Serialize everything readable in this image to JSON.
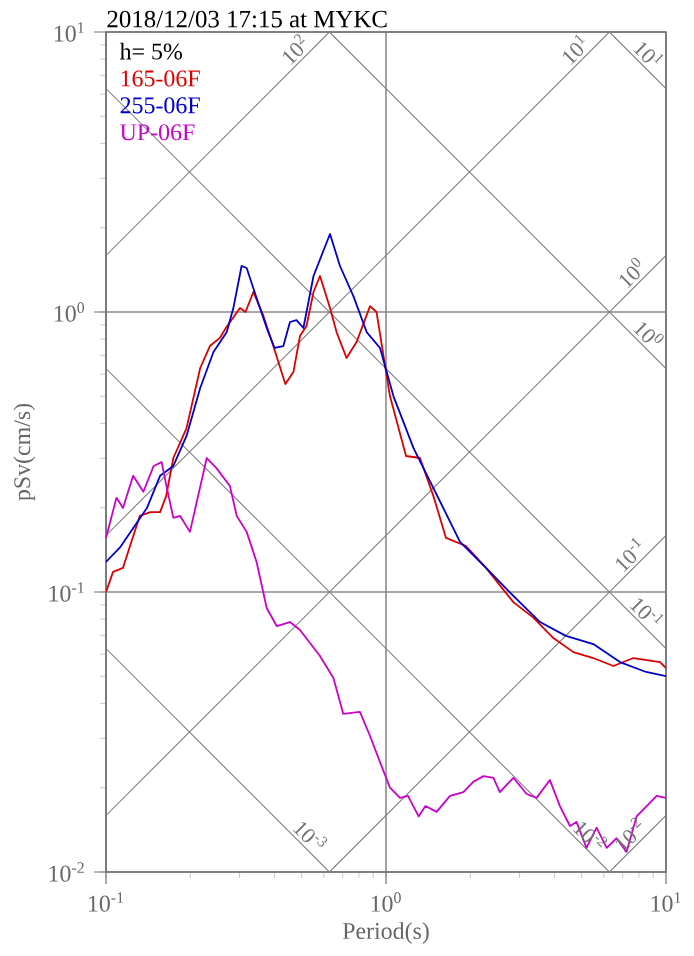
{
  "chart_data": {
    "type": "line",
    "title": "2018/12/03 17:15 at MYKC",
    "xlabel": "Period(s)",
    "ylabel": "pSv(cm/s)",
    "log": "xy",
    "grid": true,
    "legend": "top left",
    "xlim": [
      0.1,
      10
    ],
    "ylim": [
      0.01,
      10
    ],
    "xticks": [
      {
        "value": 0.1,
        "label": "10$^{-1}$"
      },
      {
        "value": 1,
        "label": "10$^{0}$"
      },
      {
        "value": 10,
        "label": "10$^{1}$"
      }
    ],
    "yticks": [
      {
        "value": 0.01,
        "label": "10$^{-2}$"
      },
      {
        "value": 0.1,
        "label": "10$^{-1}$"
      },
      {
        "value": 1,
        "label": "10$^{0}$"
      },
      {
        "value": 10,
        "label": "10$^{1}$"
      }
    ],
    "series": [
      {
        "color": "#808080",
        "x": [
          0.1,
          0.628
        ],
        "values": [
          1.592,
          10
        ]
      },
      {
        "color": "#808080",
        "x": [
          0.1,
          6.28
        ],
        "values": [
          0.1592,
          10
        ]
      },
      {
        "color": "#808080",
        "x": [
          0.1,
          10
        ],
        "values": [
          0.01592,
          1.592
        ]
      },
      {
        "color": "#808080",
        "x": [
          0.628,
          10
        ],
        "values": [
          0.01,
          0.1592
        ]
      },
      {
        "color": "#808080",
        "x": [
          6.28,
          10
        ],
        "values": [
          0.01,
          0.01592
        ]
      },
      {
        "color": "#808080",
        "x": [
          6.28,
          10
        ],
        "values": [
          10,
          6.28
        ]
      },
      {
        "color": "#808080",
        "x": [
          0.628,
          10
        ],
        "values": [
          10,
          0.628
        ]
      },
      {
        "color": "#808080",
        "x": [
          0.1,
          10
        ],
        "values": [
          6.28,
          0.0628
        ]
      },
      {
        "color": "#808080",
        "x": [
          0.1,
          6.28
        ],
        "values": [
          0.628,
          0.01
        ]
      },
      {
        "color": "#808080",
        "x": [
          0.1,
          0.628
        ],
        "values": [
          0.0628,
          0.01
        ]
      },
      {
        "name": "165-06F",
        "color": "#dd0000",
        "x": [
          0.1,
          0.106,
          0.115,
          0.132,
          0.144,
          0.156,
          0.164,
          0.174,
          0.194,
          0.217,
          0.235,
          0.255,
          0.268,
          0.301,
          0.315,
          0.336,
          0.365,
          0.396,
          0.437,
          0.467,
          0.493,
          0.52,
          0.551,
          0.581,
          0.631,
          0.666,
          0.723,
          0.785,
          0.877,
          0.925,
          1.033,
          1.179,
          1.322,
          1.477,
          1.638,
          1.931,
          2.276,
          2.85,
          3.36,
          3.96,
          4.67,
          5.5,
          6.49,
          7.65,
          9.52,
          10
        ],
        "values": [
          0.1,
          0.118,
          0.122,
          0.187,
          0.193,
          0.193,
          0.22,
          0.301,
          0.385,
          0.631,
          0.756,
          0.808,
          0.877,
          1.033,
          1.0,
          1.179,
          0.968,
          0.756,
          0.553,
          0.61,
          0.821,
          0.891,
          1.179,
          1.345,
          1.033,
          0.848,
          0.685,
          0.781,
          1.05,
          1.0,
          0.501,
          0.306,
          0.301,
          0.22,
          0.156,
          0.146,
          0.122,
          0.092,
          0.081,
          0.0685,
          0.061,
          0.0581,
          0.0544,
          0.0581,
          0.0562,
          0.0535
        ]
      },
      {
        "name": "255-06F",
        "color": "#0000cc",
        "x": [
          0.1,
          0.112,
          0.125,
          0.14,
          0.156,
          0.174,
          0.194,
          0.217,
          0.242,
          0.27,
          0.285,
          0.305,
          0.318,
          0.345,
          0.375,
          0.4,
          0.43,
          0.454,
          0.479,
          0.507,
          0.551,
          0.631,
          0.685,
          0.765,
          0.853,
          0.952,
          1.063,
          1.253,
          1.477,
          1.838,
          2.276,
          2.85,
          3.55,
          4.39,
          5.5,
          6.85,
          8.49,
          10
        ],
        "values": [
          0.128,
          0.144,
          0.169,
          0.1995,
          0.26,
          0.282,
          0.361,
          0.535,
          0.72,
          0.848,
          1.033,
          1.46,
          1.436,
          1.122,
          0.877,
          0.744,
          0.756,
          0.921,
          0.936,
          0.877,
          1.345,
          1.9,
          1.46,
          1.14,
          0.848,
          0.744,
          0.501,
          0.327,
          0.235,
          0.151,
          0.122,
          0.0968,
          0.0781,
          0.0697,
          0.0652,
          0.0562,
          0.0518,
          0.0501
        ]
      },
      {
        "name": "UP-06F",
        "color": "#cc00cc",
        "x": [
          0.1,
          0.109,
          0.115,
          0.125,
          0.136,
          0.148,
          0.158,
          0.165,
          0.174,
          0.184,
          0.1995,
          0.229,
          0.248,
          0.277,
          0.293,
          0.318,
          0.345,
          0.375,
          0.407,
          0.454,
          0.493,
          0.581,
          0.649,
          0.704,
          0.807,
          0.877,
          0.952,
          1.033,
          1.122,
          1.198,
          1.308,
          1.383,
          1.516,
          1.693,
          1.89,
          2.05,
          2.23,
          2.42,
          2.55,
          2.85,
          3.18,
          3.45,
          3.85,
          4.18,
          4.54,
          4.79,
          5.2,
          5.65,
          6.14,
          6.66,
          7.23,
          7.85,
          8.53,
          9.26,
          10
        ],
        "values": [
          0.156,
          0.217,
          0.1995,
          0.26,
          0.228,
          0.282,
          0.291,
          0.235,
          0.184,
          0.187,
          0.164,
          0.301,
          0.277,
          0.239,
          0.187,
          0.164,
          0.128,
          0.0877,
          0.0756,
          0.0781,
          0.0732,
          0.0591,
          0.0493,
          0.0367,
          0.0373,
          0.0306,
          0.0247,
          0.02,
          0.0184,
          0.0187,
          0.0158,
          0.0172,
          0.0164,
          0.0187,
          0.0193,
          0.021,
          0.022,
          0.0217,
          0.0193,
          0.0217,
          0.019,
          0.0184,
          0.0213,
          0.0172,
          0.0146,
          0.0151,
          0.0122,
          0.0144,
          0.0122,
          0.0132,
          0.0118,
          0.0158,
          0.0172,
          0.0187,
          0.0184
        ]
      }
    ],
    "annotations": [
      "h= 5%",
      {
        "text": "10$^{2}$",
        "x": 0.628,
        "y": 10
      },
      {
        "text": "10$^{1}$",
        "x": 6.28,
        "y": 10
      },
      {
        "text": "10$^{0}$",
        "x": 10,
        "y": 1.592
      },
      {
        "text": "10$^{-1}$",
        "x": 10,
        "y": 0.1592
      },
      {
        "text": "10$^{-2}$",
        "x": 10,
        "y": 0.01592
      },
      {
        "text": "10$^{1}$",
        "x": 10,
        "y": 6.28
      },
      {
        "text": "10$^{0}$",
        "x": 10,
        "y": 0.628
      },
      {
        "text": "10$^{-1}$",
        "x": 10,
        "y": 0.0628
      },
      {
        "text": "10$^{-2}$",
        "x": 6.28,
        "y": 0.01
      },
      {
        "text": "10$^{-3}$",
        "x": 0.628,
        "y": 0.01
      }
    ]
  }
}
